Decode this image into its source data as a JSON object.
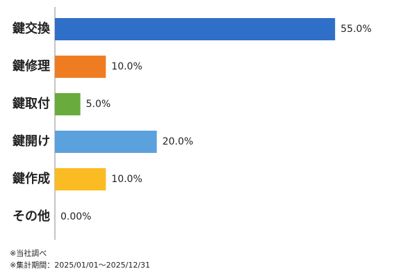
{
  "chart_data": {
    "type": "bar",
    "orientation": "horizontal",
    "categories": [
      "鍵交換",
      "鍵修理",
      "鍵取付",
      "鍵開け",
      "鍵作成",
      "その他"
    ],
    "values": [
      55,
      10,
      5,
      20,
      10,
      0
    ],
    "value_labels": [
      "55.0%",
      "10.0%",
      "5.0%",
      "20.0%",
      "10.0%",
      "0.00%"
    ],
    "colors": [
      "#2f6fc8",
      "#f07c22",
      "#6aab3d",
      "#5ba1dd",
      "#fbbb22",
      "#999999"
    ],
    "notes": [
      "※当社調べ",
      "※集計期間：2025/01/01～2025/12/31"
    ]
  }
}
